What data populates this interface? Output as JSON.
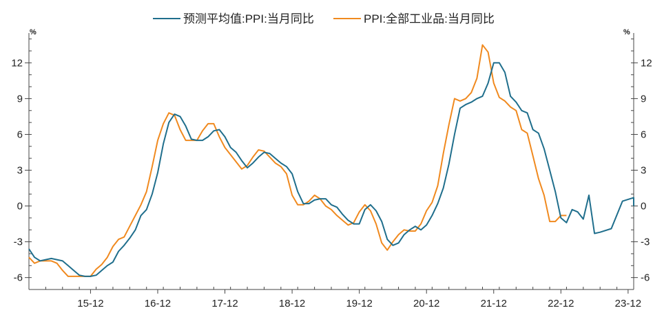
{
  "chart_data": {
    "type": "line",
    "legend_position": "top-center",
    "grid": false,
    "y_unit_left": "%",
    "y_unit_right": "%",
    "ylim": [
      -7,
      14.5
    ],
    "yticks": [
      12,
      9,
      6,
      3,
      0,
      -3,
      -6
    ],
    "ytick_labels": [
      "12",
      "9",
      "6",
      "3",
      "0",
      "-3",
      "-6"
    ],
    "xlim": [
      "2015-01",
      "2023-12"
    ],
    "xticks": [
      "15-12",
      "16-12",
      "17-12",
      "18-12",
      "19-12",
      "20-12",
      "21-12",
      "22-12",
      "23-12"
    ],
    "colors": {
      "forecast": "#1f6e8c",
      "actual": "#f0891e",
      "axis": "#444444"
    },
    "series": [
      {
        "name": "预测平均值:PPI:当月同比",
        "color": "#1f6e8c",
        "points": [
          [
            "2015-01",
            -3.6
          ],
          [
            "2015-02",
            -4.3
          ],
          [
            "2015-03",
            -4.6
          ],
          [
            "2015-04",
            -4.5
          ],
          [
            "2015-05",
            -4.4
          ],
          [
            "2015-06",
            -4.5
          ],
          [
            "2015-07",
            -4.6
          ],
          [
            "2015-08",
            -5.0
          ],
          [
            "2015-09",
            -5.4
          ],
          [
            "2015-10",
            -5.8
          ],
          [
            "2015-11",
            -5.9
          ],
          [
            "2015-12",
            -5.9
          ],
          [
            "2016-01",
            -5.8
          ],
          [
            "2016-02",
            -5.4
          ],
          [
            "2016-03",
            -5.0
          ],
          [
            "2016-04",
            -4.7
          ],
          [
            "2016-05",
            -3.8
          ],
          [
            "2016-06",
            -3.3
          ],
          [
            "2016-07",
            -2.7
          ],
          [
            "2016-08",
            -2.0
          ],
          [
            "2016-09",
            -0.8
          ],
          [
            "2016-10",
            -0.3
          ],
          [
            "2016-11",
            1.0
          ],
          [
            "2016-12",
            2.8
          ],
          [
            "2017-01",
            5.2
          ],
          [
            "2017-02",
            7.0
          ],
          [
            "2017-03",
            7.7
          ],
          [
            "2017-04",
            7.5
          ],
          [
            "2017-05",
            6.7
          ],
          [
            "2017-06",
            5.6
          ],
          [
            "2017-07",
            5.5
          ],
          [
            "2017-08",
            5.5
          ],
          [
            "2017-09",
            5.8
          ],
          [
            "2017-10",
            6.3
          ],
          [
            "2017-11",
            6.4
          ],
          [
            "2017-12",
            5.8
          ],
          [
            "2018-01",
            4.9
          ],
          [
            "2018-02",
            4.5
          ],
          [
            "2018-03",
            3.8
          ],
          [
            "2018-04",
            3.2
          ],
          [
            "2018-05",
            3.6
          ],
          [
            "2018-06",
            4.1
          ],
          [
            "2018-07",
            4.5
          ],
          [
            "2018-08",
            4.4
          ],
          [
            "2018-09",
            4.0
          ],
          [
            "2018-10",
            3.6
          ],
          [
            "2018-11",
            3.3
          ],
          [
            "2018-12",
            2.7
          ],
          [
            "2019-01",
            1.2
          ],
          [
            "2019-02",
            0.2
          ],
          [
            "2019-03",
            0.2
          ],
          [
            "2019-04",
            0.5
          ],
          [
            "2019-05",
            0.6
          ],
          [
            "2019-06",
            0.6
          ],
          [
            "2019-07",
            0.1
          ],
          [
            "2019-08",
            -0.1
          ],
          [
            "2019-09",
            -0.7
          ],
          [
            "2019-10",
            -1.2
          ],
          [
            "2019-11",
            -1.5
          ],
          [
            "2019-12",
            -1.5
          ],
          [
            "2020-01",
            -0.3
          ],
          [
            "2020-02",
            0.1
          ],
          [
            "2020-03",
            -0.4
          ],
          [
            "2020-04",
            -1.3
          ],
          [
            "2020-05",
            -2.8
          ],
          [
            "2020-06",
            -3.3
          ],
          [
            "2020-07",
            -3.1
          ],
          [
            "2020-08",
            -2.4
          ],
          [
            "2020-09",
            -2.0
          ],
          [
            "2020-10",
            -1.7
          ],
          [
            "2020-11",
            -2.0
          ],
          [
            "2020-12",
            -1.6
          ],
          [
            "2021-01",
            -0.8
          ],
          [
            "2021-02",
            0.2
          ],
          [
            "2021-03",
            1.5
          ],
          [
            "2021-04",
            3.5
          ],
          [
            "2021-05",
            6.0
          ],
          [
            "2021-06",
            8.2
          ],
          [
            "2021-07",
            8.5
          ],
          [
            "2021-08",
            8.7
          ],
          [
            "2021-09",
            9.0
          ],
          [
            "2021-10",
            9.2
          ],
          [
            "2021-11",
            10.3
          ],
          [
            "2021-12",
            12.0
          ],
          [
            "2022-01",
            12.0
          ],
          [
            "2022-02",
            11.2
          ],
          [
            "2022-03",
            9.2
          ],
          [
            "2022-04",
            8.7
          ],
          [
            "2022-05",
            8.0
          ],
          [
            "2022-06",
            7.8
          ],
          [
            "2022-07",
            6.4
          ],
          [
            "2022-08",
            6.1
          ],
          [
            "2022-09",
            4.8
          ],
          [
            "2022-10",
            3.0
          ],
          [
            "2022-11",
            1.2
          ],
          [
            "2022-12",
            -1.0
          ],
          [
            "2023-01",
            -1.4
          ],
          [
            "2023-02",
            -0.3
          ],
          [
            "2023-03",
            -0.5
          ],
          [
            "2023-04",
            -1.1
          ],
          [
            "2023-05",
            0.9
          ],
          [
            "2023-06",
            -2.3
          ],
          [
            "2023-07",
            -2.2
          ],
          [
            "2023-09",
            -1.9
          ],
          [
            "2023-11",
            0.4
          ],
          [
            "2023-13",
            0.7
          ],
          [
            "2023-15",
            0.7
          ],
          [
            "2023-16",
            0.6
          ],
          [
            "2023-17",
            0.3
          ],
          [
            "2023-18",
            0.0
          ]
        ]
      },
      {
        "name": "PPI:全部工业品:当月同比",
        "color": "#f0891e",
        "points": [
          [
            "2015-01",
            -4.3
          ],
          [
            "2015-02",
            -4.8
          ],
          [
            "2015-03",
            -4.6
          ],
          [
            "2015-04",
            -4.6
          ],
          [
            "2015-05",
            -4.6
          ],
          [
            "2015-06",
            -4.8
          ],
          [
            "2015-07",
            -5.4
          ],
          [
            "2015-08",
            -5.9
          ],
          [
            "2015-09",
            -5.9
          ],
          [
            "2015-10",
            -5.9
          ],
          [
            "2015-11",
            -5.9
          ],
          [
            "2015-12",
            -5.9
          ],
          [
            "2016-01",
            -5.3
          ],
          [
            "2016-02",
            -4.9
          ],
          [
            "2016-03",
            -4.3
          ],
          [
            "2016-04",
            -3.4
          ],
          [
            "2016-05",
            -2.8
          ],
          [
            "2016-06",
            -2.6
          ],
          [
            "2016-07",
            -1.7
          ],
          [
            "2016-08",
            -0.8
          ],
          [
            "2016-09",
            0.1
          ],
          [
            "2016-10",
            1.2
          ],
          [
            "2016-11",
            3.3
          ],
          [
            "2016-12",
            5.5
          ],
          [
            "2017-01",
            6.9
          ],
          [
            "2017-02",
            7.8
          ],
          [
            "2017-03",
            7.6
          ],
          [
            "2017-04",
            6.4
          ],
          [
            "2017-05",
            5.5
          ],
          [
            "2017-06",
            5.5
          ],
          [
            "2017-07",
            5.5
          ],
          [
            "2017-08",
            6.3
          ],
          [
            "2017-09",
            6.9
          ],
          [
            "2017-10",
            6.9
          ],
          [
            "2017-11",
            5.8
          ],
          [
            "2017-12",
            4.9
          ],
          [
            "2018-01",
            4.3
          ],
          [
            "2018-02",
            3.7
          ],
          [
            "2018-03",
            3.1
          ],
          [
            "2018-04",
            3.4
          ],
          [
            "2018-05",
            4.1
          ],
          [
            "2018-06",
            4.7
          ],
          [
            "2018-07",
            4.6
          ],
          [
            "2018-08",
            4.1
          ],
          [
            "2018-09",
            3.6
          ],
          [
            "2018-10",
            3.3
          ],
          [
            "2018-11",
            2.7
          ],
          [
            "2018-12",
            0.9
          ],
          [
            "2019-01",
            0.1
          ],
          [
            "2019-02",
            0.1
          ],
          [
            "2019-03",
            0.4
          ],
          [
            "2019-04",
            0.9
          ],
          [
            "2019-05",
            0.6
          ],
          [
            "2019-06",
            0.0
          ],
          [
            "2019-07",
            -0.3
          ],
          [
            "2019-08",
            -0.8
          ],
          [
            "2019-09",
            -1.2
          ],
          [
            "2019-10",
            -1.6
          ],
          [
            "2019-11",
            -1.4
          ],
          [
            "2019-12",
            -0.5
          ],
          [
            "2020-01",
            0.1
          ],
          [
            "2020-02",
            -0.4
          ],
          [
            "2020-03",
            -1.5
          ],
          [
            "2020-04",
            -3.1
          ],
          [
            "2020-05",
            -3.7
          ],
          [
            "2020-06",
            -3.0
          ],
          [
            "2020-07",
            -2.4
          ],
          [
            "2020-08",
            -2.0
          ],
          [
            "2020-09",
            -2.1
          ],
          [
            "2020-10",
            -2.1
          ],
          [
            "2020-11",
            -1.5
          ],
          [
            "2020-12",
            -0.4
          ],
          [
            "2021-01",
            0.3
          ],
          [
            "2021-02",
            1.7
          ],
          [
            "2021-03",
            4.4
          ],
          [
            "2021-04",
            6.8
          ],
          [
            "2021-05",
            9.0
          ],
          [
            "2021-06",
            8.8
          ],
          [
            "2021-07",
            9.0
          ],
          [
            "2021-08",
            9.5
          ],
          [
            "2021-09",
            10.7
          ],
          [
            "2021-10",
            13.5
          ],
          [
            "2021-11",
            12.9
          ],
          [
            "2021-12",
            10.3
          ],
          [
            "2022-01",
            9.1
          ],
          [
            "2022-02",
            8.8
          ],
          [
            "2022-03",
            8.3
          ],
          [
            "2022-04",
            8.0
          ],
          [
            "2022-05",
            6.4
          ],
          [
            "2022-06",
            6.1
          ],
          [
            "2022-07",
            4.2
          ],
          [
            "2022-08",
            2.3
          ],
          [
            "2022-09",
            0.9
          ],
          [
            "2022-10",
            -1.3
          ],
          [
            "2022-11",
            -1.3
          ],
          [
            "2022-12",
            -0.8
          ],
          [
            "2023-01",
            -0.8
          ]
        ]
      }
    ]
  }
}
